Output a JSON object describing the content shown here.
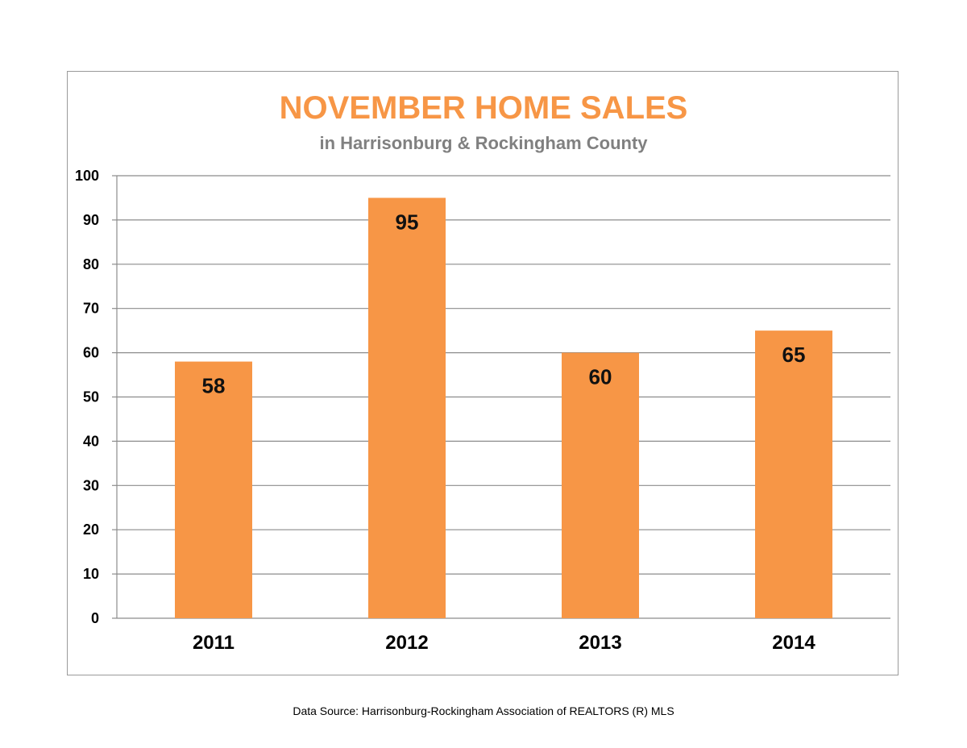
{
  "chart_data": {
    "type": "bar",
    "title": "NOVEMBER HOME SALES",
    "subtitle": "in Harrisonburg & Rockingham County",
    "categories": [
      "2011",
      "2012",
      "2013",
      "2014"
    ],
    "values": [
      58,
      95,
      60,
      65
    ],
    "data_labels": [
      "58",
      "95",
      "60",
      "65"
    ],
    "ylim": [
      0,
      100
    ],
    "yticks": [
      "0",
      "10",
      "20",
      "30",
      "40",
      "50",
      "60",
      "70",
      "80",
      "90",
      "100"
    ],
    "xlabel": "",
    "ylabel": "",
    "grid": true,
    "legend": "none"
  },
  "colors": {
    "bar": "#f79646",
    "title": "#f79646",
    "subtitle": "#808080",
    "grid": "#8c8c8c"
  },
  "source_note": "Data Source: Harrisonburg-Rockingham Association of REALTORS (R) MLS"
}
